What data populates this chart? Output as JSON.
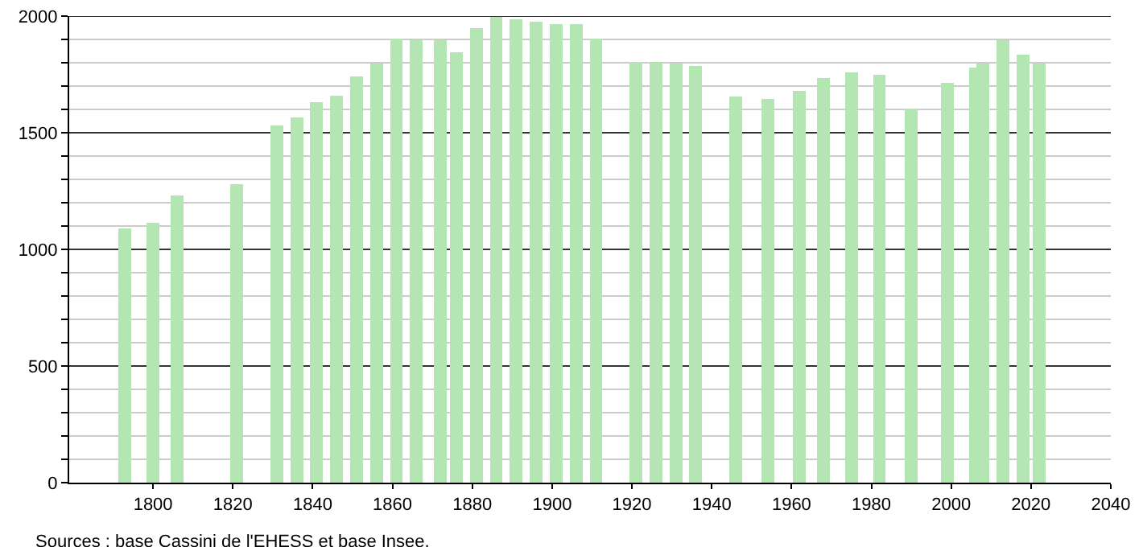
{
  "chart_data": {
    "type": "bar",
    "x": [
      1793,
      1800,
      1806,
      1821,
      1831,
      1836,
      1841,
      1846,
      1851,
      1856,
      1861,
      1866,
      1872,
      1876,
      1881,
      1886,
      1891,
      1896,
      1901,
      1906,
      1911,
      1921,
      1926,
      1931,
      1936,
      1946,
      1954,
      1962,
      1968,
      1975,
      1982,
      1990,
      1999,
      2006,
      2008,
      2013,
      2018,
      2022
    ],
    "values": [
      1090,
      1115,
      1230,
      1280,
      1530,
      1565,
      1630,
      1660,
      1740,
      1795,
      1905,
      1895,
      1895,
      1845,
      1950,
      1995,
      1985,
      1975,
      1965,
      1965,
      1905,
      1805,
      1800,
      1795,
      1785,
      1655,
      1645,
      1680,
      1735,
      1760,
      1750,
      1605,
      1715,
      1780,
      1795,
      1895,
      1835,
      1795
    ],
    "color": "#b3e6b3",
    "xlim": [
      1779,
      2040
    ],
    "xticks": [
      1800,
      1820,
      1840,
      1860,
      1880,
      1900,
      1920,
      1940,
      1960,
      1980,
      2000,
      2020,
      2040
    ],
    "ylim": [
      0,
      2000
    ],
    "yticks": [
      0,
      {
        "value": 100,
        "label": null
      },
      {
        "value": 200,
        "label": null
      },
      {
        "value": 300,
        "label": null
      },
      {
        "value": 400,
        "label": null
      },
      500,
      {
        "value": 600,
        "label": null
      },
      {
        "value": 700,
        "label": null
      },
      {
        "value": 800,
        "label": null
      },
      {
        "value": 900,
        "label": null
      },
      1000,
      {
        "value": 1100,
        "label": null
      },
      {
        "value": 1200,
        "label": null
      },
      {
        "value": 1300,
        "label": null
      },
      {
        "value": 1400,
        "label": null
      },
      1500,
      {
        "value": 1600,
        "label": null
      },
      {
        "value": 1700,
        "label": null
      },
      {
        "value": 1800,
        "label": null
      },
      {
        "value": 1900,
        "label": null
      },
      2000
    ],
    "grid": "y",
    "annotations": [
      "Sources : base Cassini de l'EHESS et base Insee."
    ]
  }
}
